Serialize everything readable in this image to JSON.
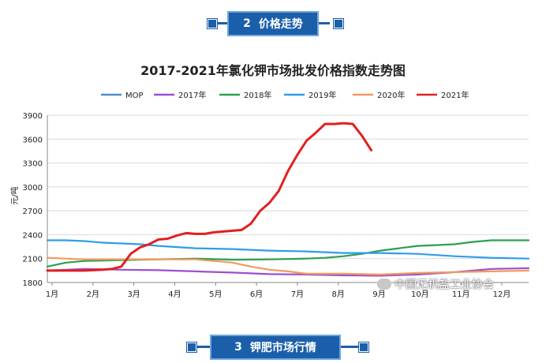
{
  "section_top": {
    "number": "2",
    "label": "价格走势"
  },
  "section_bottom": {
    "number": "3",
    "label": "钾肥市场行情"
  },
  "watermark": {
    "text": "中国无机盐工业协会",
    "icon": "wechat-icon"
  },
  "chart_data": {
    "type": "line",
    "title": "2017-2021年氯化钾市场批发价格指数走势图",
    "ylabel": "元/吨",
    "xlabel": "",
    "ylim": [
      1800,
      3900
    ],
    "yticks": [
      1800,
      2100,
      2400,
      2700,
      3000,
      3300,
      3600,
      3900
    ],
    "xticks": [
      "1月",
      "2月",
      "3月",
      "4月",
      "5月",
      "6月",
      "7月",
      "8月",
      "9月",
      "10月",
      "11月",
      "12月"
    ],
    "grid": "horizontal",
    "legend_position": "top",
    "x_range_weeks": [
      0,
      52
    ],
    "series": [
      {
        "name": "MOP",
        "color": "#4a8ec9",
        "x": [],
        "values": []
      },
      {
        "name": "2017年",
        "color": "#9b4fd0",
        "x": [
          0,
          4,
          8,
          12,
          16,
          20,
          24,
          28,
          32,
          36,
          40,
          44,
          48,
          52
        ],
        "values": [
          1950,
          1970,
          1960,
          1955,
          1940,
          1925,
          1905,
          1900,
          1890,
          1885,
          1900,
          1930,
          1970,
          1980
        ]
      },
      {
        "name": "2018年",
        "color": "#2aa050",
        "x": [
          0,
          2,
          4,
          8,
          12,
          16,
          20,
          24,
          28,
          30,
          32,
          34,
          36,
          38,
          40,
          42,
          44,
          46,
          48,
          50,
          52
        ],
        "values": [
          2000,
          2050,
          2070,
          2080,
          2090,
          2100,
          2085,
          2090,
          2100,
          2110,
          2130,
          2160,
          2200,
          2230,
          2260,
          2270,
          2280,
          2310,
          2330,
          2330,
          2330
        ]
      },
      {
        "name": "2019年",
        "color": "#2f9de6",
        "x": [
          0,
          2,
          4,
          6,
          8,
          10,
          12,
          16,
          20,
          24,
          28,
          32,
          36,
          40,
          44,
          48,
          52
        ],
        "values": [
          2330,
          2330,
          2320,
          2300,
          2290,
          2280,
          2260,
          2230,
          2220,
          2200,
          2190,
          2170,
          2170,
          2160,
          2130,
          2110,
          2100
        ]
      },
      {
        "name": "2020年",
        "color": "#f29a5c",
        "x": [
          0,
          4,
          8,
          12,
          16,
          18,
          20,
          22,
          24,
          26,
          28,
          32,
          36,
          40,
          44,
          48,
          52
        ],
        "values": [
          2110,
          2090,
          2090,
          2090,
          2090,
          2070,
          2050,
          2000,
          1960,
          1940,
          1910,
          1910,
          1900,
          1920,
          1930,
          1940,
          1950
        ]
      },
      {
        "name": "2021年",
        "color": "#e02020",
        "x": [
          0,
          2,
          4,
          6,
          7,
          8,
          9,
          10,
          11,
          12,
          13,
          14,
          15,
          16,
          17,
          18,
          19,
          20,
          21,
          22,
          23,
          24,
          25,
          26,
          27,
          28,
          29,
          30,
          31,
          32,
          33,
          34,
          35
        ],
        "values": [
          1950,
          1950,
          1950,
          1960,
          1970,
          2000,
          2160,
          2240,
          2280,
          2340,
          2350,
          2390,
          2420,
          2410,
          2410,
          2430,
          2440,
          2450,
          2460,
          2540,
          2700,
          2800,
          2950,
          3200,
          3400,
          3580,
          3680,
          3790,
          3790,
          3800,
          3790,
          3640,
          3460
        ]
      }
    ]
  }
}
